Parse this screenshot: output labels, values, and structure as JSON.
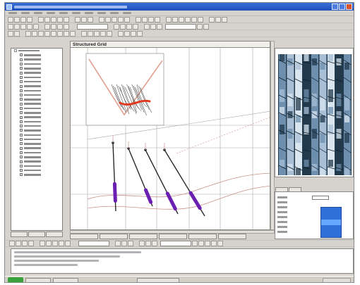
{
  "window": {
    "title": ""
  },
  "viewport": {
    "title": "Structured Grid",
    "background": "#ffffff",
    "grid_color": "#a8a8a8",
    "horizon_color": "#c8918a",
    "well_color": "#2a2a2a",
    "log_color": "#6a1fb0",
    "trace_color": "#e03a1e"
  },
  "core_image": {
    "colors": [
      "#223a4c",
      "#6e8fae",
      "#a8bfd5",
      "#d9e6f0"
    ]
  },
  "properties": {
    "swatch_color": "#2f6fda"
  },
  "icons": [
    "app-icon",
    "minimize-icon",
    "maximize-icon",
    "close-icon"
  ]
}
